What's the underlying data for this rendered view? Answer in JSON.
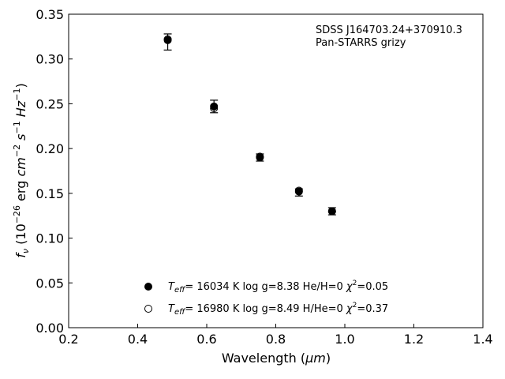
{
  "chart_data": {
    "type": "scatter",
    "xlabel_main": "Wavelength (",
    "xlabel_unit": "μm",
    "xlabel_end": ")",
    "ylabel_pre": "f",
    "ylabel_sub": "ν",
    "ylabel_mid": " (10",
    "ylabel_exp1": "−26",
    "ylabel_units": " erg ",
    "ylabel_cm": "cm",
    "ylabel_exp2": "−2",
    "ylabel_s": " s",
    "ylabel_exp3": "−1",
    "ylabel_hz": " Hz",
    "ylabel_exp4": "−1",
    "ylabel_close": ")",
    "xlim": [
      0.2,
      1.4
    ],
    "ylim": [
      0.0,
      0.35
    ],
    "xticks": [
      "0.2",
      "0.4",
      "0.6",
      "0.8",
      "1.0",
      "1.2",
      "1.4"
    ],
    "yticks": [
      "0.00",
      "0.05",
      "0.10",
      "0.15",
      "0.20",
      "0.25",
      "0.30",
      "0.35"
    ],
    "annotations": [
      "SDSS J164703.24+370910.3",
      "Pan-STARRS grizy"
    ],
    "observed": {
      "x": [
        0.487,
        0.621,
        0.754,
        0.867,
        0.963
      ],
      "y": [
        0.319,
        0.247,
        0.19,
        0.151,
        0.13
      ],
      "yerr": [
        0.009,
        0.007,
        0.004,
        0.004,
        0.004
      ]
    },
    "series": [
      {
        "marker": "filled",
        "label_T": "T",
        "label_Tsub": "eff",
        "label_rest": "= 16034 K  log g=8.38  He/H=0  ",
        "label_chi": "χ",
        "label_chi_exp": "2",
        "label_chi_val": "=0.05",
        "x": [
          0.487,
          0.621,
          0.754,
          0.867,
          0.963
        ],
        "y": [
          0.321,
          0.247,
          0.19,
          0.152,
          0.13
        ]
      },
      {
        "marker": "open",
        "label_T": "T",
        "label_Tsub": "eff",
        "label_rest": "= 16980 K  log g=8.49  H/He=0  ",
        "label_chi": "χ",
        "label_chi_exp": "2",
        "label_chi_val": "=0.37",
        "x": [
          0.487,
          0.621,
          0.754,
          0.867,
          0.963
        ],
        "y": [
          0.322,
          0.245,
          0.191,
          0.153,
          0.13
        ]
      }
    ]
  }
}
